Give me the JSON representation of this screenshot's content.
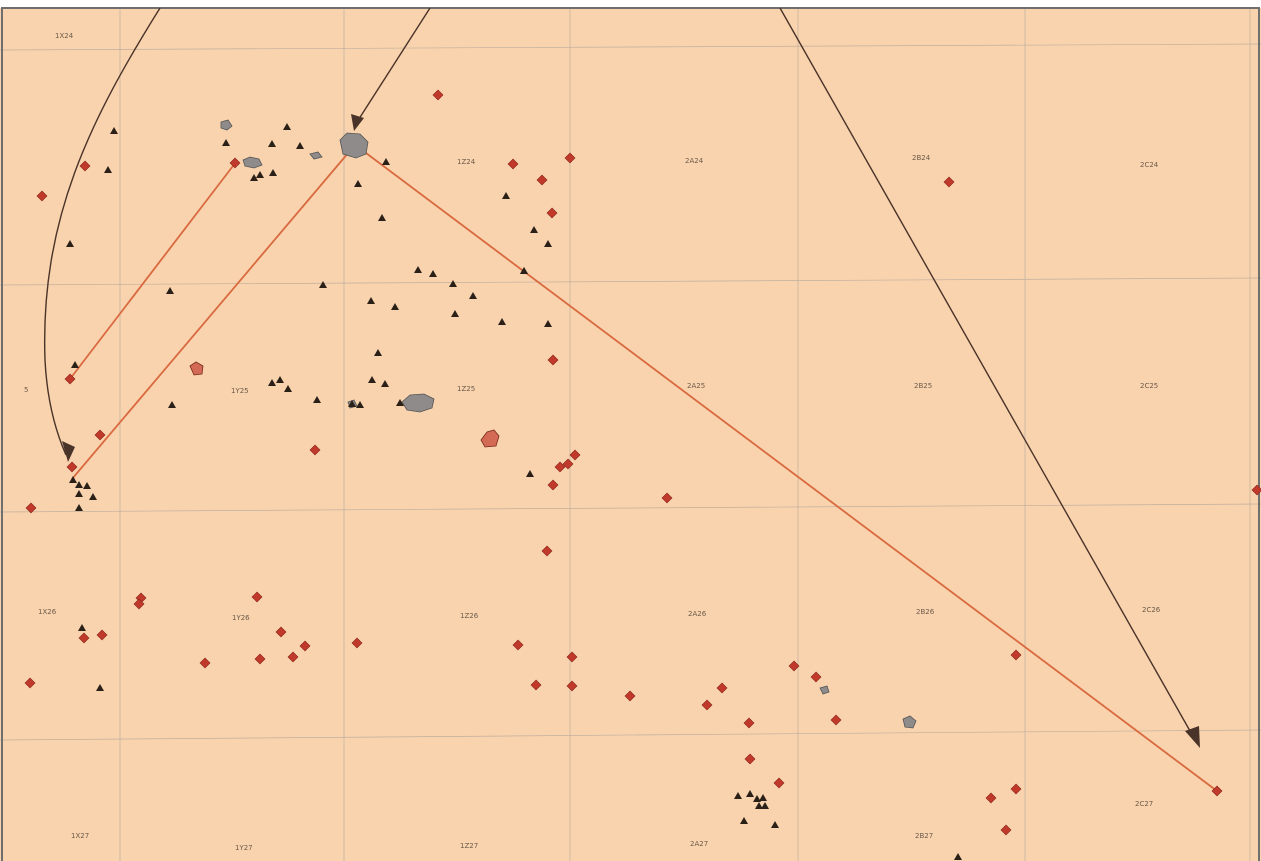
{
  "map": {
    "colors": {
      "background": "#f9d3ae",
      "grid": "#bfae9c",
      "frame": "#6f6f6f",
      "diamond": "#c0392b",
      "diamond_stroke": "#8a2418",
      "triangle": "#2a2018",
      "connector": "#d9693f",
      "arrow": "#4a3328",
      "feature_fill": "#8f8b8b",
      "feature_red_fill": "#d36a55"
    },
    "cells": [
      {
        "id": "cell-1x24",
        "label": "1X24"
      },
      {
        "id": "cell-1z24",
        "label": "1Z24"
      },
      {
        "id": "cell-2a24",
        "label": "2A24"
      },
      {
        "id": "cell-2b24",
        "label": "2B24"
      },
      {
        "id": "cell-2c24",
        "label": "2C24"
      },
      {
        "id": "cell-1y25",
        "label": "1Y25"
      },
      {
        "id": "cell-1z25",
        "label": "1Z25"
      },
      {
        "id": "cell-2a25",
        "label": "2A25"
      },
      {
        "id": "cell-2b25",
        "label": "2B25"
      },
      {
        "id": "cell-2c25",
        "label": "2C25"
      },
      {
        "id": "cell-1x26",
        "label": "1X26"
      },
      {
        "id": "cell-1y26",
        "label": "1Y26"
      },
      {
        "id": "cell-1z26",
        "label": "1Z26"
      },
      {
        "id": "cell-2a26",
        "label": "2A26"
      },
      {
        "id": "cell-2b26",
        "label": "2B26"
      },
      {
        "id": "cell-2c26",
        "label": "2C26"
      },
      {
        "id": "cell-2c27",
        "label": "2C27"
      },
      {
        "id": "cell-1x27",
        "label": "1X27"
      },
      {
        "id": "cell-1y27",
        "label": "1Y27"
      },
      {
        "id": "cell-1z27",
        "label": "1Z27"
      },
      {
        "id": "cell-2a27",
        "label": "2A27"
      },
      {
        "id": "cell-2b27",
        "label": "2B27"
      },
      {
        "id": "cell-edge-5",
        "label": "5"
      }
    ]
  }
}
